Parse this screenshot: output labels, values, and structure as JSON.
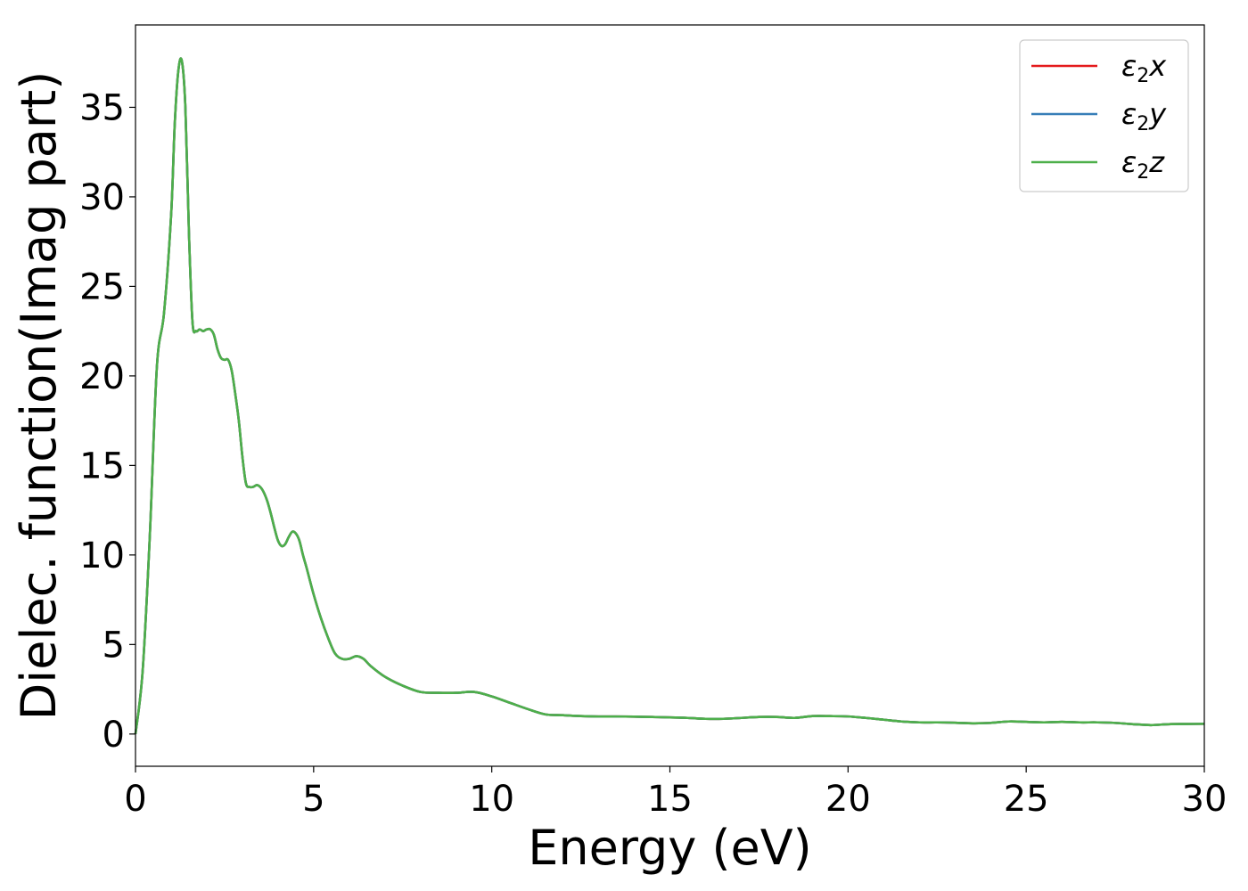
{
  "chart_data": {
    "type": "line",
    "title": "",
    "xlabel": "Energy (eV)",
    "ylabel": "Dielec. function(Imag part)",
    "xlim": [
      0,
      30
    ],
    "ylim": [
      -1.8,
      39.6
    ],
    "xticks": [
      0,
      5,
      10,
      15,
      20,
      25,
      30
    ],
    "yticks": [
      0,
      5,
      10,
      15,
      20,
      25,
      30,
      35
    ],
    "grid": false,
    "legend_position": "top-right",
    "x": [
      0,
      0.2,
      0.4,
      0.6,
      0.8,
      1.0,
      1.1,
      1.2,
      1.3,
      1.4,
      1.5,
      1.6,
      1.7,
      1.8,
      1.9,
      2.0,
      2.1,
      2.2,
      2.3,
      2.4,
      2.5,
      2.6,
      2.7,
      2.8,
      2.9,
      3.0,
      3.1,
      3.2,
      3.3,
      3.4,
      3.5,
      3.6,
      3.7,
      3.8,
      3.9,
      4.0,
      4.1,
      4.2,
      4.3,
      4.4,
      4.5,
      4.6,
      4.7,
      4.8,
      5.0,
      5.2,
      5.4,
      5.6,
      5.8,
      6.0,
      6.2,
      6.4,
      6.6,
      7.0,
      7.5,
      8.0,
      8.5,
      9.0,
      9.5,
      10.0,
      10.5,
      11.0,
      11.5,
      12.0,
      12.5,
      13.0,
      13.5,
      14.0,
      14.5,
      15.0,
      15.5,
      16.0,
      16.5,
      17.0,
      17.5,
      18.0,
      18.5,
      19.0,
      19.5,
      20.0,
      20.5,
      21.0,
      21.5,
      22.0,
      22.5,
      23.0,
      23.5,
      24.0,
      24.5,
      25.0,
      25.5,
      26.0,
      26.5,
      27.0,
      27.5,
      28.0,
      28.5,
      29.0,
      29.5,
      30.0
    ],
    "series": [
      {
        "name": "ε2x",
        "color": "#e41a1c",
        "values": [
          0,
          3.5,
          11,
          20.5,
          23.5,
          29,
          34,
          37,
          37.6,
          35,
          28,
          23,
          22.5,
          22.6,
          22.5,
          22.6,
          22.6,
          22.3,
          21.5,
          21.0,
          20.9,
          20.9,
          20.3,
          19.0,
          17.5,
          15.5,
          14.0,
          13.8,
          13.8,
          13.9,
          13.8,
          13.5,
          13.0,
          12.3,
          11.5,
          10.8,
          10.5,
          10.6,
          11.0,
          11.3,
          11.2,
          10.8,
          10.0,
          9.3,
          7.8,
          6.5,
          5.4,
          4.5,
          4.2,
          4.2,
          4.35,
          4.2,
          3.8,
          3.2,
          2.7,
          2.35,
          2.3,
          2.3,
          2.35,
          2.1,
          1.75,
          1.4,
          1.1,
          1.05,
          1.0,
          0.98,
          0.98,
          0.97,
          0.95,
          0.93,
          0.9,
          0.85,
          0.85,
          0.9,
          0.95,
          0.95,
          0.9,
          1.0,
          1.0,
          0.98,
          0.9,
          0.8,
          0.7,
          0.65,
          0.65,
          0.63,
          0.6,
          0.62,
          0.7,
          0.68,
          0.65,
          0.68,
          0.65,
          0.65,
          0.62,
          0.55,
          0.5,
          0.55,
          0.56,
          0.57
        ]
      },
      {
        "name": "ε2y",
        "color": "#377eb8",
        "values": [
          0,
          3.5,
          11,
          20.5,
          23.5,
          29,
          34,
          37,
          37.6,
          35,
          28,
          23,
          22.5,
          22.6,
          22.5,
          22.6,
          22.6,
          22.3,
          21.5,
          21.0,
          20.9,
          20.9,
          20.3,
          19.0,
          17.5,
          15.5,
          14.0,
          13.8,
          13.8,
          13.9,
          13.8,
          13.5,
          13.0,
          12.3,
          11.5,
          10.8,
          10.5,
          10.6,
          11.0,
          11.3,
          11.2,
          10.8,
          10.0,
          9.3,
          7.8,
          6.5,
          5.4,
          4.5,
          4.2,
          4.2,
          4.35,
          4.2,
          3.8,
          3.2,
          2.7,
          2.35,
          2.3,
          2.3,
          2.35,
          2.1,
          1.75,
          1.4,
          1.1,
          1.05,
          1.0,
          0.98,
          0.98,
          0.97,
          0.95,
          0.93,
          0.9,
          0.85,
          0.85,
          0.9,
          0.95,
          0.95,
          0.9,
          1.0,
          1.0,
          0.98,
          0.9,
          0.8,
          0.7,
          0.65,
          0.65,
          0.63,
          0.6,
          0.62,
          0.7,
          0.68,
          0.65,
          0.68,
          0.65,
          0.65,
          0.62,
          0.55,
          0.5,
          0.55,
          0.56,
          0.57
        ]
      },
      {
        "name": "ε2z",
        "color": "#4daf4a",
        "values": [
          0,
          3.5,
          11,
          20.5,
          23.5,
          29,
          34,
          37,
          37.6,
          35,
          28,
          23,
          22.5,
          22.6,
          22.5,
          22.6,
          22.6,
          22.3,
          21.5,
          21.0,
          20.9,
          20.9,
          20.3,
          19.0,
          17.5,
          15.5,
          14.0,
          13.8,
          13.8,
          13.9,
          13.8,
          13.5,
          13.0,
          12.3,
          11.5,
          10.8,
          10.5,
          10.6,
          11.0,
          11.3,
          11.2,
          10.8,
          10.0,
          9.3,
          7.8,
          6.5,
          5.4,
          4.5,
          4.2,
          4.2,
          4.35,
          4.2,
          3.8,
          3.2,
          2.7,
          2.35,
          2.3,
          2.3,
          2.35,
          2.1,
          1.75,
          1.4,
          1.1,
          1.05,
          1.0,
          0.98,
          0.98,
          0.97,
          0.95,
          0.93,
          0.9,
          0.85,
          0.85,
          0.9,
          0.95,
          0.95,
          0.9,
          1.0,
          1.0,
          0.98,
          0.9,
          0.8,
          0.7,
          0.65,
          0.65,
          0.63,
          0.6,
          0.62,
          0.7,
          0.68,
          0.65,
          0.68,
          0.65,
          0.65,
          0.62,
          0.55,
          0.5,
          0.55,
          0.56,
          0.57
        ]
      }
    ],
    "legend": [
      {
        "symbol": "ε",
        "sub": "2",
        "var": "x"
      },
      {
        "symbol": "ε",
        "sub": "2",
        "var": "y"
      },
      {
        "symbol": "ε",
        "sub": "2",
        "var": "z"
      }
    ]
  }
}
